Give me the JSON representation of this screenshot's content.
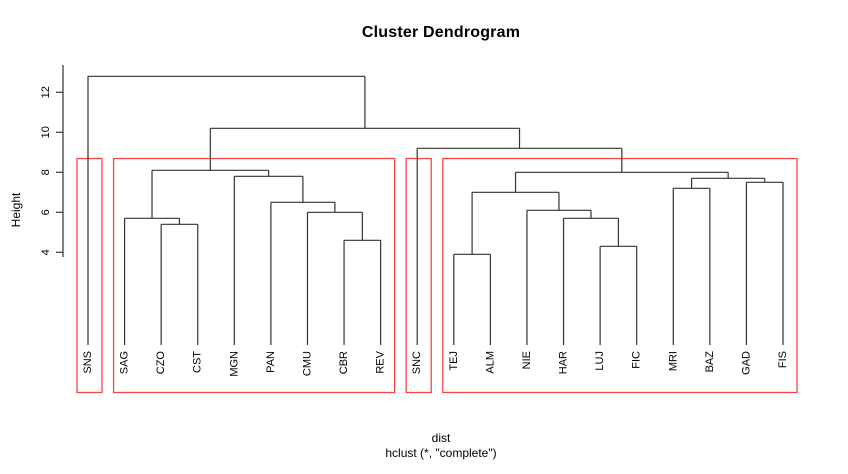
{
  "chart_data": {
    "type": "dendrogram",
    "title": "Cluster Dendrogram",
    "ylabel": "Height",
    "xlabel": "dist",
    "sub_caption": "hclust (*, \"complete\")",
    "axis": {
      "ticks": [
        4,
        6,
        8,
        10,
        12
      ],
      "range_shown": [
        4,
        12
      ]
    },
    "leaves": [
      "SNS",
      "SAG",
      "CZO",
      "CST",
      "MGN",
      "PAN",
      "CMU",
      "CBR",
      "REV",
      "SNC",
      "TEJ",
      "ALM",
      "NIE",
      "HAR",
      "LUJ",
      "FIC",
      "MRI",
      "BAZ",
      "GAD",
      "FIS"
    ],
    "tree": {
      "h": 12.8,
      "children": [
        {
          "leaf": "SNS"
        },
        {
          "h": 10.2,
          "children": [
            {
              "h": 8.1,
              "children": [
                {
                  "h": 5.7,
                  "children": [
                    {
                      "leaf": "SAG"
                    },
                    {
                      "h": 5.4,
                      "children": [
                        {
                          "leaf": "CZO"
                        },
                        {
                          "leaf": "CST"
                        }
                      ]
                    }
                  ]
                },
                {
                  "h": 7.8,
                  "children": [
                    {
                      "leaf": "MGN"
                    },
                    {
                      "h": 6.5,
                      "children": [
                        {
                          "leaf": "PAN"
                        },
                        {
                          "h": 6.0,
                          "children": [
                            {
                              "leaf": "CMU"
                            },
                            {
                              "h": 4.6,
                              "children": [
                                {
                                  "leaf": "CBR"
                                },
                                {
                                  "leaf": "REV"
                                }
                              ]
                            }
                          ]
                        }
                      ]
                    }
                  ]
                }
              ]
            },
            {
              "h": 9.2,
              "children": [
                {
                  "leaf": "SNC"
                },
                {
                  "h": 8.0,
                  "children": [
                    {
                      "h": 7.0,
                      "children": [
                        {
                          "h": 3.9,
                          "children": [
                            {
                              "leaf": "TEJ"
                            },
                            {
                              "leaf": "ALM"
                            }
                          ]
                        },
                        {
                          "h": 6.1,
                          "children": [
                            {
                              "leaf": "NIE"
                            },
                            {
                              "h": 5.7,
                              "children": [
                                {
                                  "leaf": "HAR"
                                },
                                {
                                  "h": 4.3,
                                  "children": [
                                    {
                                      "leaf": "LUJ"
                                    },
                                    {
                                      "leaf": "FIC"
                                    }
                                  ]
                                }
                              ]
                            }
                          ]
                        }
                      ]
                    },
                    {
                      "h": 7.7,
                      "children": [
                        {
                          "h": 7.2,
                          "children": [
                            {
                              "leaf": "MRI"
                            },
                            {
                              "leaf": "BAZ"
                            }
                          ]
                        },
                        {
                          "h": 7.5,
                          "children": [
                            {
                              "leaf": "GAD"
                            },
                            {
                              "leaf": "FIS"
                            }
                          ]
                        }
                      ]
                    }
                  ]
                }
              ]
            }
          ]
        }
      ]
    },
    "cluster_boxes": [
      {
        "from": "SNS",
        "to": "SNS"
      },
      {
        "from": "SAG",
        "to": "REV"
      },
      {
        "from": "SNC",
        "to": "SNC"
      },
      {
        "from": "TEJ",
        "to": "FIS"
      }
    ],
    "colors": {
      "line": "#333333",
      "box": "#f94545",
      "text": "#000000",
      "background": "#ffffff"
    }
  }
}
